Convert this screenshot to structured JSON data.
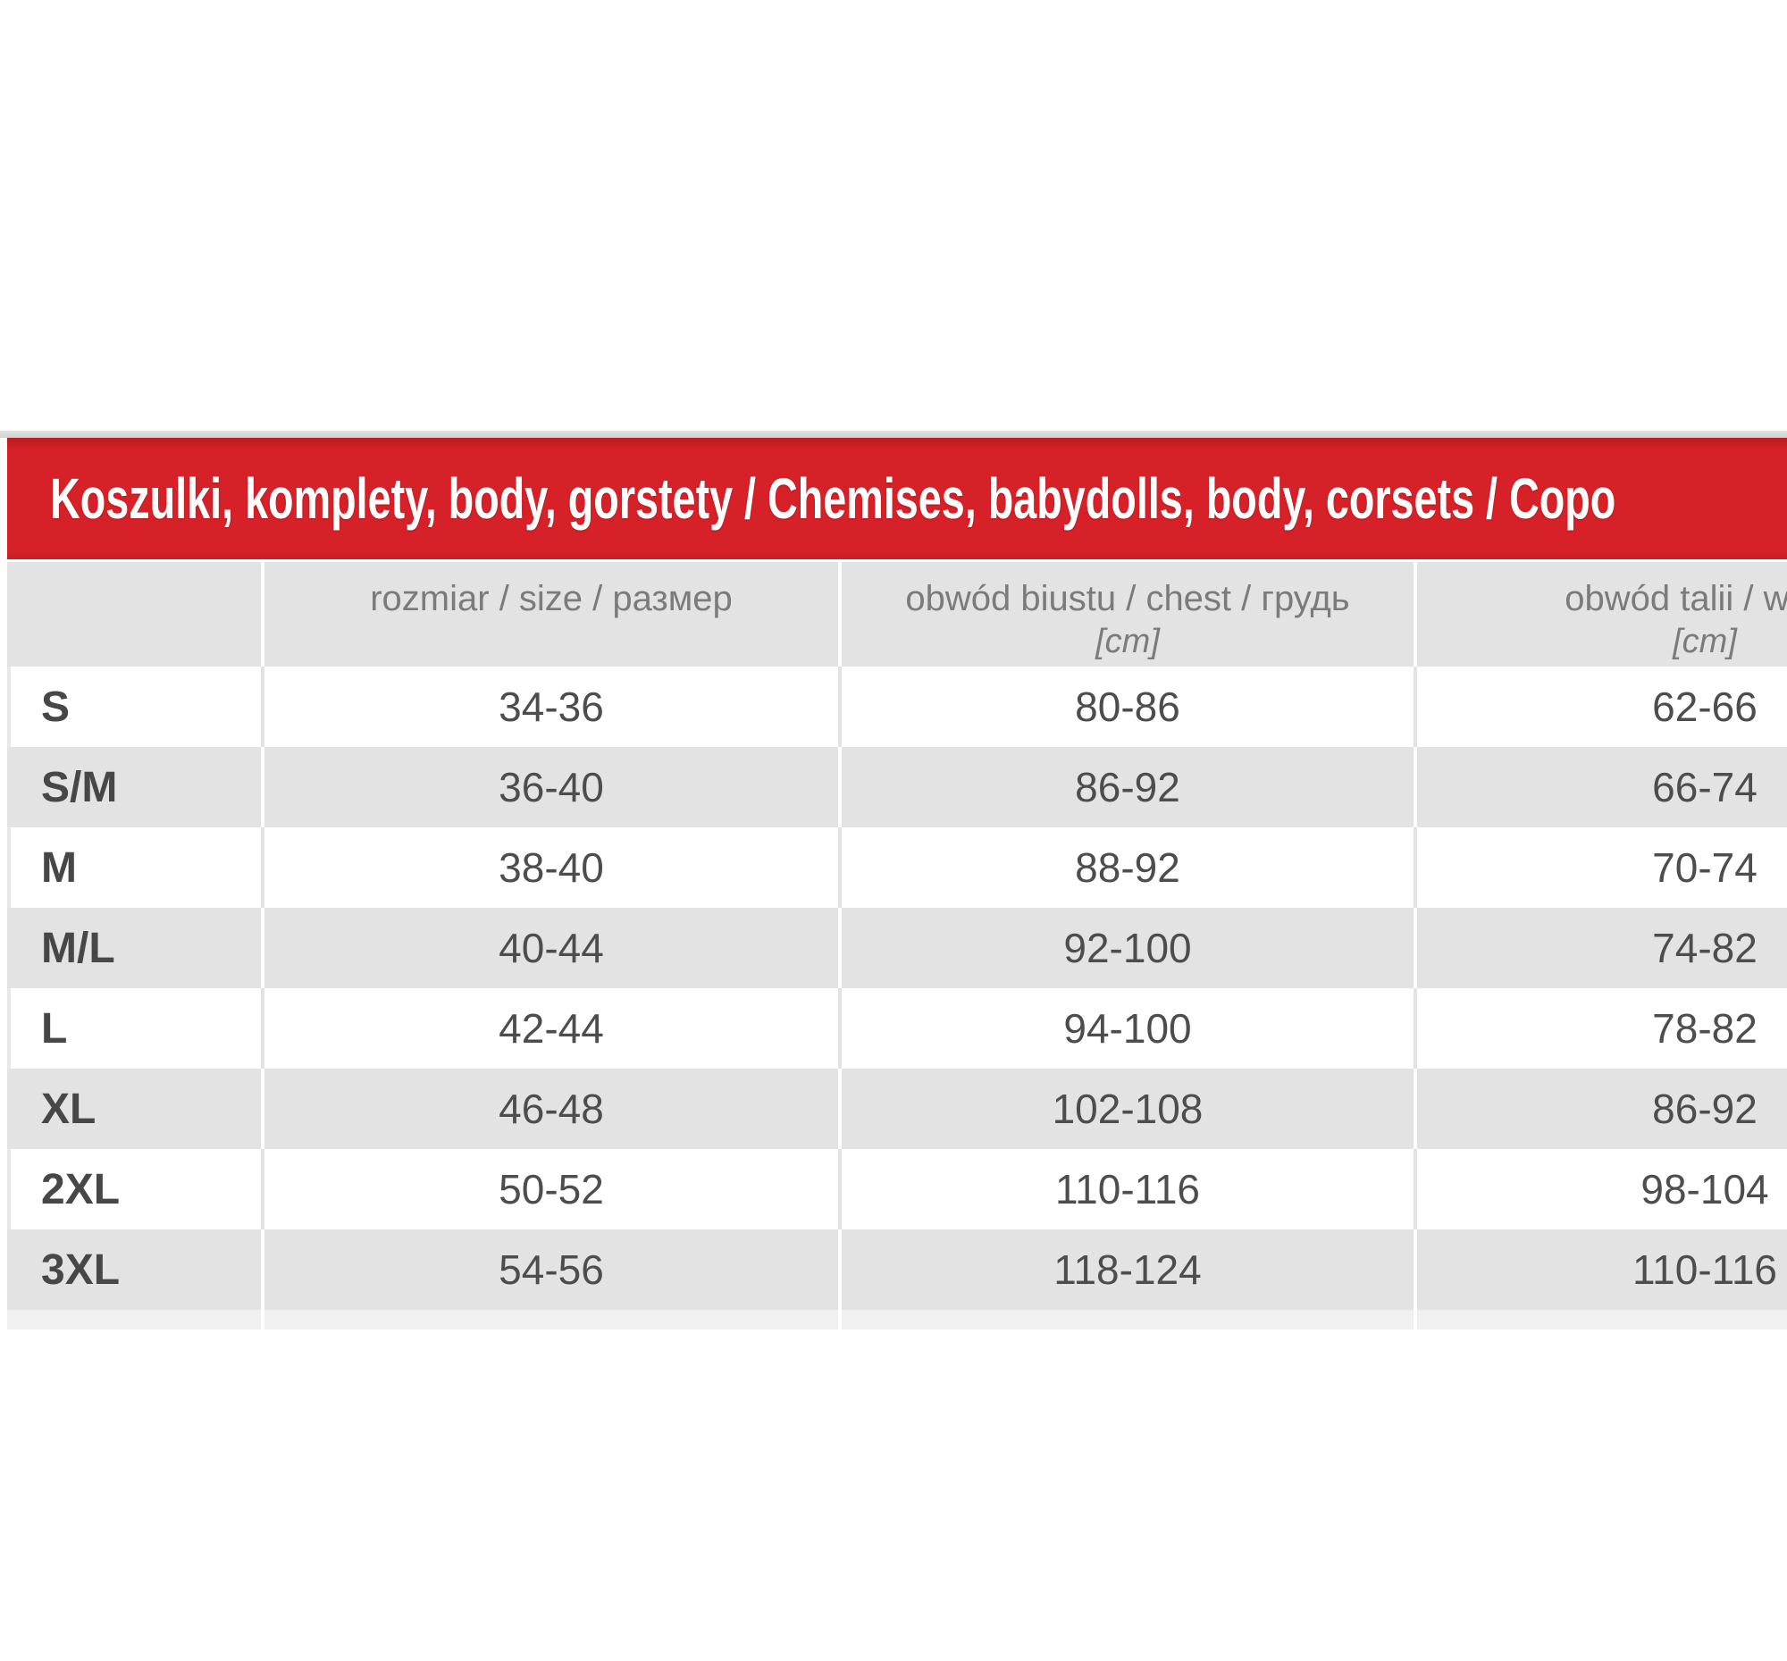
{
  "page": {
    "background": "#ffffff"
  },
  "colors": {
    "banner_red": "#d62128",
    "banner_text": "#ffffff",
    "header_gray": "#e3e3e3",
    "row_alt_gray": "#e3e3e3",
    "row_white": "#ffffff",
    "divider_on_gray": "#ffffff",
    "divider_on_white": "#e3e3e3",
    "top_strip_gray": "#d5d5d5",
    "partial_row_gray": "#f0f0f0",
    "header_text_gray": "#7b7b7b",
    "body_text_dark": "#4d4d4d"
  },
  "banner": {
    "title": "Koszulki, komplety, body, gorstety / Chemises, babydolls, body, corsets / Copo"
  },
  "table": {
    "columns": [
      {
        "id": "size_label",
        "line1": "",
        "line2": ""
      },
      {
        "id": "size",
        "line1": "rozmiar / size / размер",
        "line2": ""
      },
      {
        "id": "chest",
        "line1": "obwód biustu / chest / грудь",
        "line2": "[cm]"
      },
      {
        "id": "waist",
        "line1": "obwód talii / waist",
        "line2": "[cm]"
      }
    ],
    "rows": [
      {
        "label": "S",
        "size": "34-36",
        "chest": "80-86",
        "waist": "62-66"
      },
      {
        "label": "S/M",
        "size": "36-40",
        "chest": "86-92",
        "waist": "66-74"
      },
      {
        "label": "M",
        "size": "38-40",
        "chest": "88-92",
        "waist": "70-74"
      },
      {
        "label": "M/L",
        "size": "40-44",
        "chest": "92-100",
        "waist": "74-82"
      },
      {
        "label": "L",
        "size": "42-44",
        "chest": "94-100",
        "waist": "78-82"
      },
      {
        "label": "XL",
        "size": "46-48",
        "chest": "102-108",
        "waist": "86-92"
      },
      {
        "label": "2XL",
        "size": "50-52",
        "chest": "110-116",
        "waist": "98-104"
      },
      {
        "label": "3XL",
        "size": "54-56",
        "chest": "118-124",
        "waist": "110-116"
      }
    ]
  }
}
